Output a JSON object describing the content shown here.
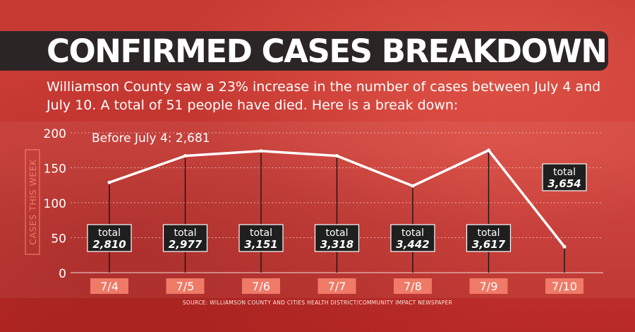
{
  "header": {
    "title": "CONFIRMED CASES BREAKDOWN",
    "subtitle": "Williamson County saw a 23% increase in the number of cases between July 4 and July 10. A total of 51 people have died. Here is a break down:"
  },
  "annotation": "Before July 4: 2,681",
  "total_label": "total",
  "source": "SOURCE: WILLIAMSON COUNTY AND CITIES HEALTH DISTRICT/COMMUNITY IMPACT NEWSPAPER",
  "colors": {
    "background": "#c7302b",
    "title_bar": "#2b2526",
    "line": "#ffffff",
    "box": "#1f1f1f",
    "date_tag": "#ef7a67"
  },
  "chart_data": {
    "type": "line",
    "categories": [
      "7/4",
      "7/5",
      "7/6",
      "7/7",
      "7/8",
      "7/9",
      "7/10"
    ],
    "values": [
      129,
      167,
      174,
      167,
      124,
      175,
      37
    ],
    "totals": [
      "2,810",
      "2,977",
      "3,151",
      "3,318",
      "3,442",
      "3,617",
      "3,654"
    ],
    "ylabel": "CASES THIS WEEK",
    "ylim": [
      0,
      200
    ],
    "yticks": [
      0,
      50,
      100,
      150,
      200
    ],
    "grid": true
  }
}
